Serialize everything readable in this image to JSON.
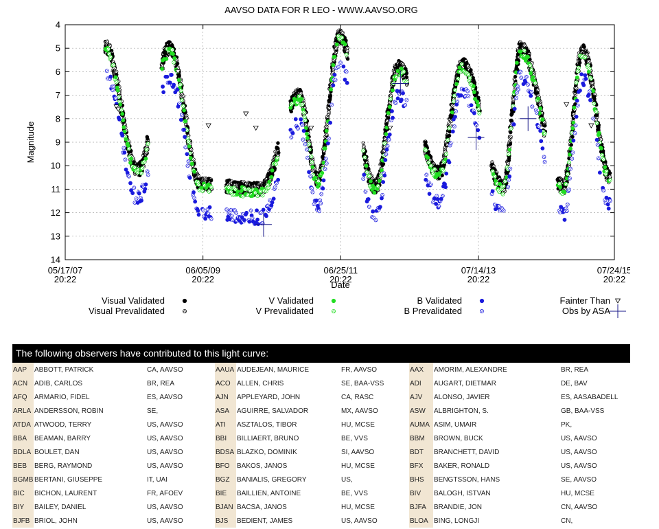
{
  "chart_data": {
    "type": "scatter",
    "title": "AAVSO DATA FOR R LEO - WWW.AAVSO.ORG",
    "xlabel": "Date",
    "ylabel": "Magnitude",
    "ylim": [
      14,
      4
    ],
    "yticks": [
      4,
      5,
      6,
      7,
      8,
      9,
      10,
      11,
      12,
      13,
      14
    ],
    "xlim": [
      "05/17/07 20:22",
      "07/24/15 20:22"
    ],
    "xticks": [
      {
        "line1": "05/17/07",
        "line2": "20:22",
        "date": "2007-05-17"
      },
      {
        "line1": "06/05/09",
        "line2": "20:22",
        "date": "2009-06-05"
      },
      {
        "line1": "06/25/11",
        "line2": "20:22",
        "date": "2011-06-25"
      },
      {
        "line1": "07/14/13",
        "line2": "20:22",
        "date": "2013-07-14"
      },
      {
        "line1": "07/24/15",
        "line2": "20:22",
        "date": "2015-07-24"
      }
    ],
    "grid": true,
    "legend_position": "bottom",
    "maxima": [
      {
        "date": "2007-12-20",
        "mag": 4.9
      },
      {
        "date": "2008-12-05",
        "mag": 5.0
      },
      {
        "date": "2010-11-10",
        "mag": 7.0
      },
      {
        "date": "2011-06-18",
        "mag": 4.5
      },
      {
        "date": "2012-05-03",
        "mag": 5.8
      },
      {
        "date": "2013-04-18",
        "mag": 5.7
      },
      {
        "date": "2014-03-01",
        "mag": 5.0
      },
      {
        "date": "2015-02-01",
        "mag": 5.1
      }
    ],
    "minima": [
      {
        "date": "2008-06-15",
        "mag": 10.2
      },
      {
        "date": "2009-05-25",
        "mag": 10.8
      },
      {
        "date": "2010-04-15",
        "mag": 11.0
      },
      {
        "date": "2011-02-20",
        "mag": 10.6
      },
      {
        "date": "2011-12-30",
        "mag": 10.9
      },
      {
        "date": "2012-12-10",
        "mag": 10.3
      },
      {
        "date": "2013-11-25",
        "mag": 10.9
      },
      {
        "date": "2014-10-20",
        "mag": 10.9
      },
      {
        "date": "2015-07-01",
        "mag": 10.5
      }
    ],
    "gaps": [
      [
        "2008-08-10",
        "2008-10-25"
      ],
      [
        "2009-07-20",
        "2009-10-10"
      ],
      [
        "2010-07-20",
        "2010-09-25"
      ],
      [
        "2011-08-01",
        "2011-10-25"
      ],
      [
        "2012-06-20",
        "2012-09-25"
      ],
      [
        "2013-07-20",
        "2013-09-25"
      ],
      [
        "2014-07-10",
        "2014-09-20"
      ]
    ],
    "series": [
      {
        "name": "Visual Validated",
        "color": "#000000",
        "marker": "filled-circle"
      },
      {
        "name": "Visual Prevalidated",
        "color": "#000000",
        "marker": "hatched-circle"
      },
      {
        "name": "V Validated",
        "color": "#22dd22",
        "marker": "filled-circle"
      },
      {
        "name": "V Prevalidated",
        "color": "#22dd22",
        "marker": "hatched-circle"
      },
      {
        "name": "B Validated",
        "color": "#1a1add",
        "marker": "filled-circle"
      },
      {
        "name": "B Prevalidated",
        "color": "#1a1add",
        "marker": "hatched-circle"
      },
      {
        "name": "Fainter Than",
        "color": "#000000",
        "marker": "down-triangle"
      },
      {
        "name": "Obs by ASA",
        "color": "#1a1a88",
        "marker": "cross"
      }
    ],
    "fainter_than": [
      {
        "date": "2008-02-20",
        "mag": 7.5
      },
      {
        "date": "2008-03-01",
        "mag": 7.6
      },
      {
        "date": "2009-01-20",
        "mag": 6.0
      },
      {
        "date": "2009-07-05",
        "mag": 8.3
      },
      {
        "date": "2010-01-25",
        "mag": 7.8
      },
      {
        "date": "2010-03-20",
        "mag": 8.4
      },
      {
        "date": "2011-01-15",
        "mag": 8.4
      },
      {
        "date": "2012-03-20",
        "mag": 8.4
      },
      {
        "date": "2014-11-05",
        "mag": 7.4
      },
      {
        "date": "2015-03-20",
        "mag": 8.3
      }
    ],
    "asa_obs": [
      {
        "date": "2010-05-01",
        "mag": 12.5
      },
      {
        "date": "2012-05-15",
        "mag": 6.5
      },
      {
        "date": "2013-07-01",
        "mag": 8.8
      },
      {
        "date": "2014-04-10",
        "mag": 8.0
      }
    ]
  },
  "observers": {
    "header": "The following observers have contributed to this light curve:",
    "rows": [
      [
        [
          "AAP",
          "ABBOTT, PATRICK",
          "CA, AAVSO"
        ],
        [
          "AAUA",
          "AUDEJEAN, MAURICE",
          "FR, AAVSO"
        ],
        [
          "AAX",
          "AMORIM, ALEXANDRE",
          "BR, REA"
        ]
      ],
      [
        [
          "ACN",
          "ADIB, CARLOS",
          "BR, REA"
        ],
        [
          "ACO",
          "ALLEN, CHRIS",
          "SE, BAA-VSS"
        ],
        [
          "ADI",
          "AUGART, DIETMAR",
          "DE, BAV"
        ]
      ],
      [
        [
          "AFQ",
          "ARMARIO, FIDEL",
          "ES, AAVSO"
        ],
        [
          "AJN",
          "APPLEYARD, JOHN",
          "CA, RASC"
        ],
        [
          "AJV",
          "ALONSO, JAVIER",
          "ES, AASABADELL"
        ]
      ],
      [
        [
          "ARLA",
          "ANDERSSON, ROBIN",
          "SE,"
        ],
        [
          "ASA",
          "AGUIRRE, SALVADOR",
          "MX, AAVSO"
        ],
        [
          "ASW",
          "ALBRIGHTON, S.",
          "GB, BAA-VSS"
        ]
      ],
      [
        [
          "ATDA",
          "ATWOOD, TERRY",
          "US, AAVSO"
        ],
        [
          "ATI",
          "ASZTALOS, TIBOR",
          "HU, MCSE"
        ],
        [
          "AUMA",
          "ASIM, UMAIR",
          "PK,"
        ]
      ],
      [
        [
          "BBA",
          "BEAMAN, BARRY",
          "US, AAVSO"
        ],
        [
          "BBI",
          "BILLIAERT, BRUNO",
          "BE, VVS"
        ],
        [
          "BBM",
          "BROWN, BUCK",
          "US, AAVSO"
        ]
      ],
      [
        [
          "BDLA",
          "BOULET, DAN",
          "US, AAVSO"
        ],
        [
          "BDSA",
          "BLAZKO, DOMINIK",
          "SI, AAVSO"
        ],
        [
          "BDT",
          "BRANCHETT, DAVID",
          "US, AAVSO"
        ]
      ],
      [
        [
          "BEB",
          "BERG, RAYMOND",
          "US, AAVSO"
        ],
        [
          "BFO",
          "BAKOS, JANOS",
          "HU, MCSE"
        ],
        [
          "BFX",
          "BAKER, RONALD",
          "US, AAVSO"
        ]
      ],
      [
        [
          "BGMB",
          "BERTANI, GIUSEPPE",
          "IT, UAI"
        ],
        [
          "BGZ",
          "BANIALIS, GREGORY",
          "US,"
        ],
        [
          "BHS",
          "BENGTSSON, HANS",
          "SE, AAVSO"
        ]
      ],
      [
        [
          "BIC",
          "BICHON, LAURENT",
          "FR, AFOEV"
        ],
        [
          "BIE",
          "BAILLIEN, ANTOINE",
          "BE, VVS"
        ],
        [
          "BIV",
          "BALOGH, ISTVAN",
          "HU, MCSE"
        ]
      ],
      [
        [
          "BIY",
          "BAILEY, DANIEL",
          "US, AAVSO"
        ],
        [
          "BJAN",
          "BACSA, JANOS",
          "HU, MCSE"
        ],
        [
          "BJFA",
          "BRANDIE, JON",
          "CN, AAVSO"
        ]
      ],
      [
        [
          "BJFB",
          "BRIOL, JOHN",
          "US, AAVSO"
        ],
        [
          "BJS",
          "BEDIENT, JAMES",
          "US, AAVSO"
        ],
        [
          "BLOA",
          "BING, LONGJI",
          "CN,"
        ]
      ]
    ]
  }
}
